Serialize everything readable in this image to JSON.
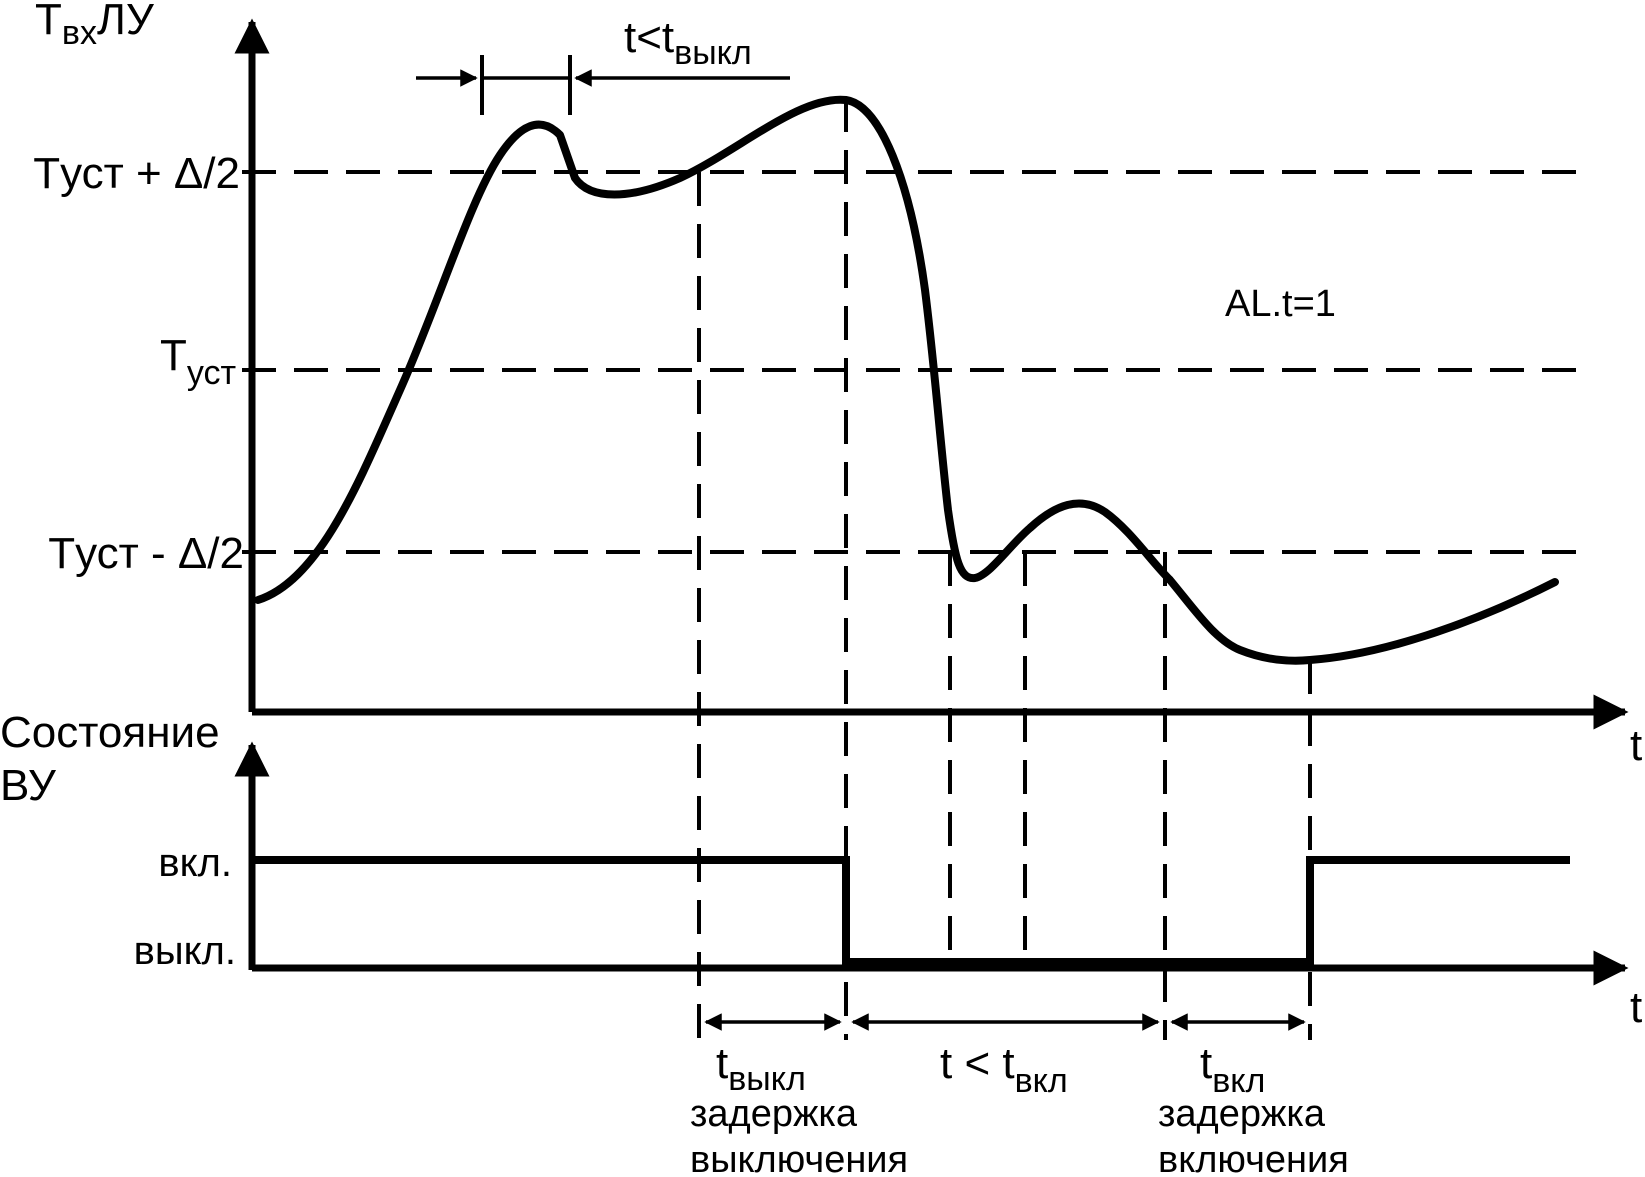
{
  "labels": {
    "y_axis_main": "T",
    "y_axis_main_sub": "вх",
    "y_axis_main_suffix": "ЛУ",
    "t_upper": "Tуст + Δ/2",
    "t_set_main": "T",
    "t_set_sub": "уст",
    "t_lower": "Tуст - Δ/2",
    "param": "AL.t=1",
    "x_axis_main": "t",
    "y_axis_state_line1": "Состояние",
    "y_axis_state_line2": "ВУ",
    "state_on": "вкл.",
    "state_off": "выкл.",
    "x_axis_state": "t",
    "top_dim_main": "t<t",
    "top_dim_sub": "выкл",
    "t_off_main": "t",
    "t_off_sub": "выкл",
    "t_off_desc1": "задержка",
    "t_off_desc2": "выключения",
    "t_lt_on_main": "t < t",
    "t_lt_on_sub": "вкл",
    "t_on_main": "t",
    "t_on_sub": "вкл",
    "t_on_desc1": "задержка",
    "t_on_desc2": "включения"
  }
}
